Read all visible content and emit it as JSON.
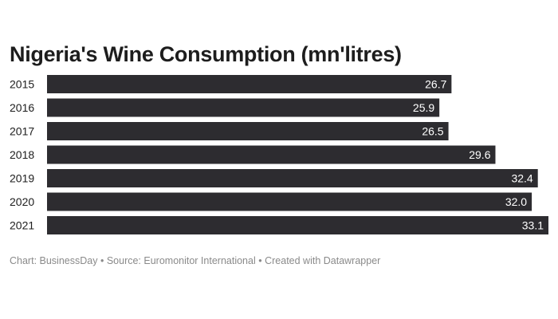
{
  "chart_data": {
    "type": "bar",
    "orientation": "horizontal",
    "title": "Nigeria's Wine Consumption (mn'litres)",
    "categories": [
      "2015",
      "2016",
      "2017",
      "2018",
      "2019",
      "2020",
      "2021"
    ],
    "values": [
      26.7,
      25.9,
      26.5,
      29.6,
      32.4,
      32.0,
      33.1
    ],
    "value_labels": [
      "26.7",
      "25.9",
      "26.5",
      "29.6",
      "32.4",
      "32.0",
      "33.1"
    ],
    "xlim": [
      0,
      33.1
    ],
    "grid": false,
    "bar_color": "#2d2c30",
    "label_color": "#ffffff"
  },
  "footer": {
    "chart_credit": "Chart: BusinessDay",
    "source": "Source: Euromonitor International",
    "created_with": "Created with Datawrapper",
    "separator": "•"
  }
}
